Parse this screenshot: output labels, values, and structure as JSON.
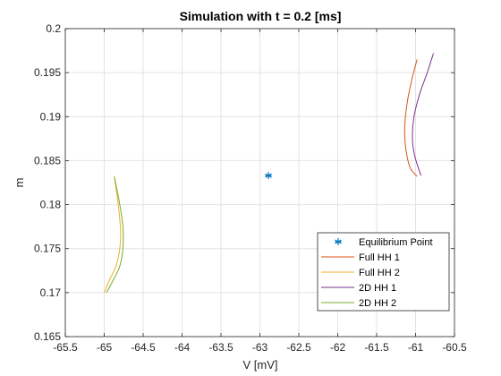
{
  "chart_data": {
    "type": "line",
    "title": "Simulation with t = 0.2 [ms]",
    "xlabel": "V [mV]",
    "ylabel": "m",
    "xlim": [
      -65.5,
      -60.5
    ],
    "ylim": [
      0.165,
      0.2
    ],
    "grid": true,
    "legend_position": "bottom-right",
    "x_ticks": [
      -65.5,
      -65,
      -64.5,
      -64,
      -63.5,
      -63,
      -62.5,
      -62,
      -61.5,
      -61,
      -60.5
    ],
    "x_tick_labels": [
      "-65.5",
      "-65",
      "-64.5",
      "-64",
      "-63.5",
      "-63",
      "-62.5",
      "-62",
      "-61.5",
      "-61",
      "-60.5"
    ],
    "y_ticks": [
      0.165,
      0.17,
      0.175,
      0.18,
      0.185,
      0.19,
      0.195,
      0.2
    ],
    "y_tick_labels": [
      "0.165",
      "0.17",
      "0.175",
      "0.18",
      "0.185",
      "0.19",
      "0.195",
      "0.2"
    ],
    "series": [
      {
        "name": "Equilibrium Point",
        "kind": "marker",
        "marker": "asterisk",
        "color": "#0072BD",
        "x": [
          -62.89
        ],
        "y": [
          0.1833
        ]
      },
      {
        "name": "Full HH 1",
        "kind": "line",
        "color": "#D95319",
        "x": [
          -60.98,
          -61.04,
          -61.1,
          -61.13,
          -61.14,
          -61.12,
          -61.07,
          -60.98
        ],
        "y": [
          0.1965,
          0.1945,
          0.192,
          0.19,
          0.188,
          0.186,
          0.1842,
          0.1832
        ]
      },
      {
        "name": "Full HH 2",
        "kind": "line",
        "color": "#EDB120",
        "x": [
          -65.0,
          -64.93,
          -64.85,
          -64.8,
          -64.79,
          -64.82,
          -64.87
        ],
        "y": [
          0.17,
          0.1715,
          0.173,
          0.175,
          0.177,
          0.18,
          0.1832
        ]
      },
      {
        "name": "2D HH 1",
        "kind": "line",
        "color": "#7E2F8E",
        "x": [
          -60.77,
          -60.85,
          -60.95,
          -61.02,
          -61.04,
          -61.01,
          -60.93
        ],
        "y": [
          0.1972,
          0.195,
          0.1925,
          0.19,
          0.1875,
          0.1855,
          0.1833
        ]
      },
      {
        "name": "2D HH 2",
        "kind": "line",
        "color": "#77AC30",
        "x": [
          -64.87,
          -64.8,
          -64.76,
          -64.76,
          -64.8,
          -64.88,
          -64.97
        ],
        "y": [
          0.1832,
          0.18,
          0.1775,
          0.175,
          0.173,
          0.1715,
          0.17
        ]
      }
    ]
  }
}
